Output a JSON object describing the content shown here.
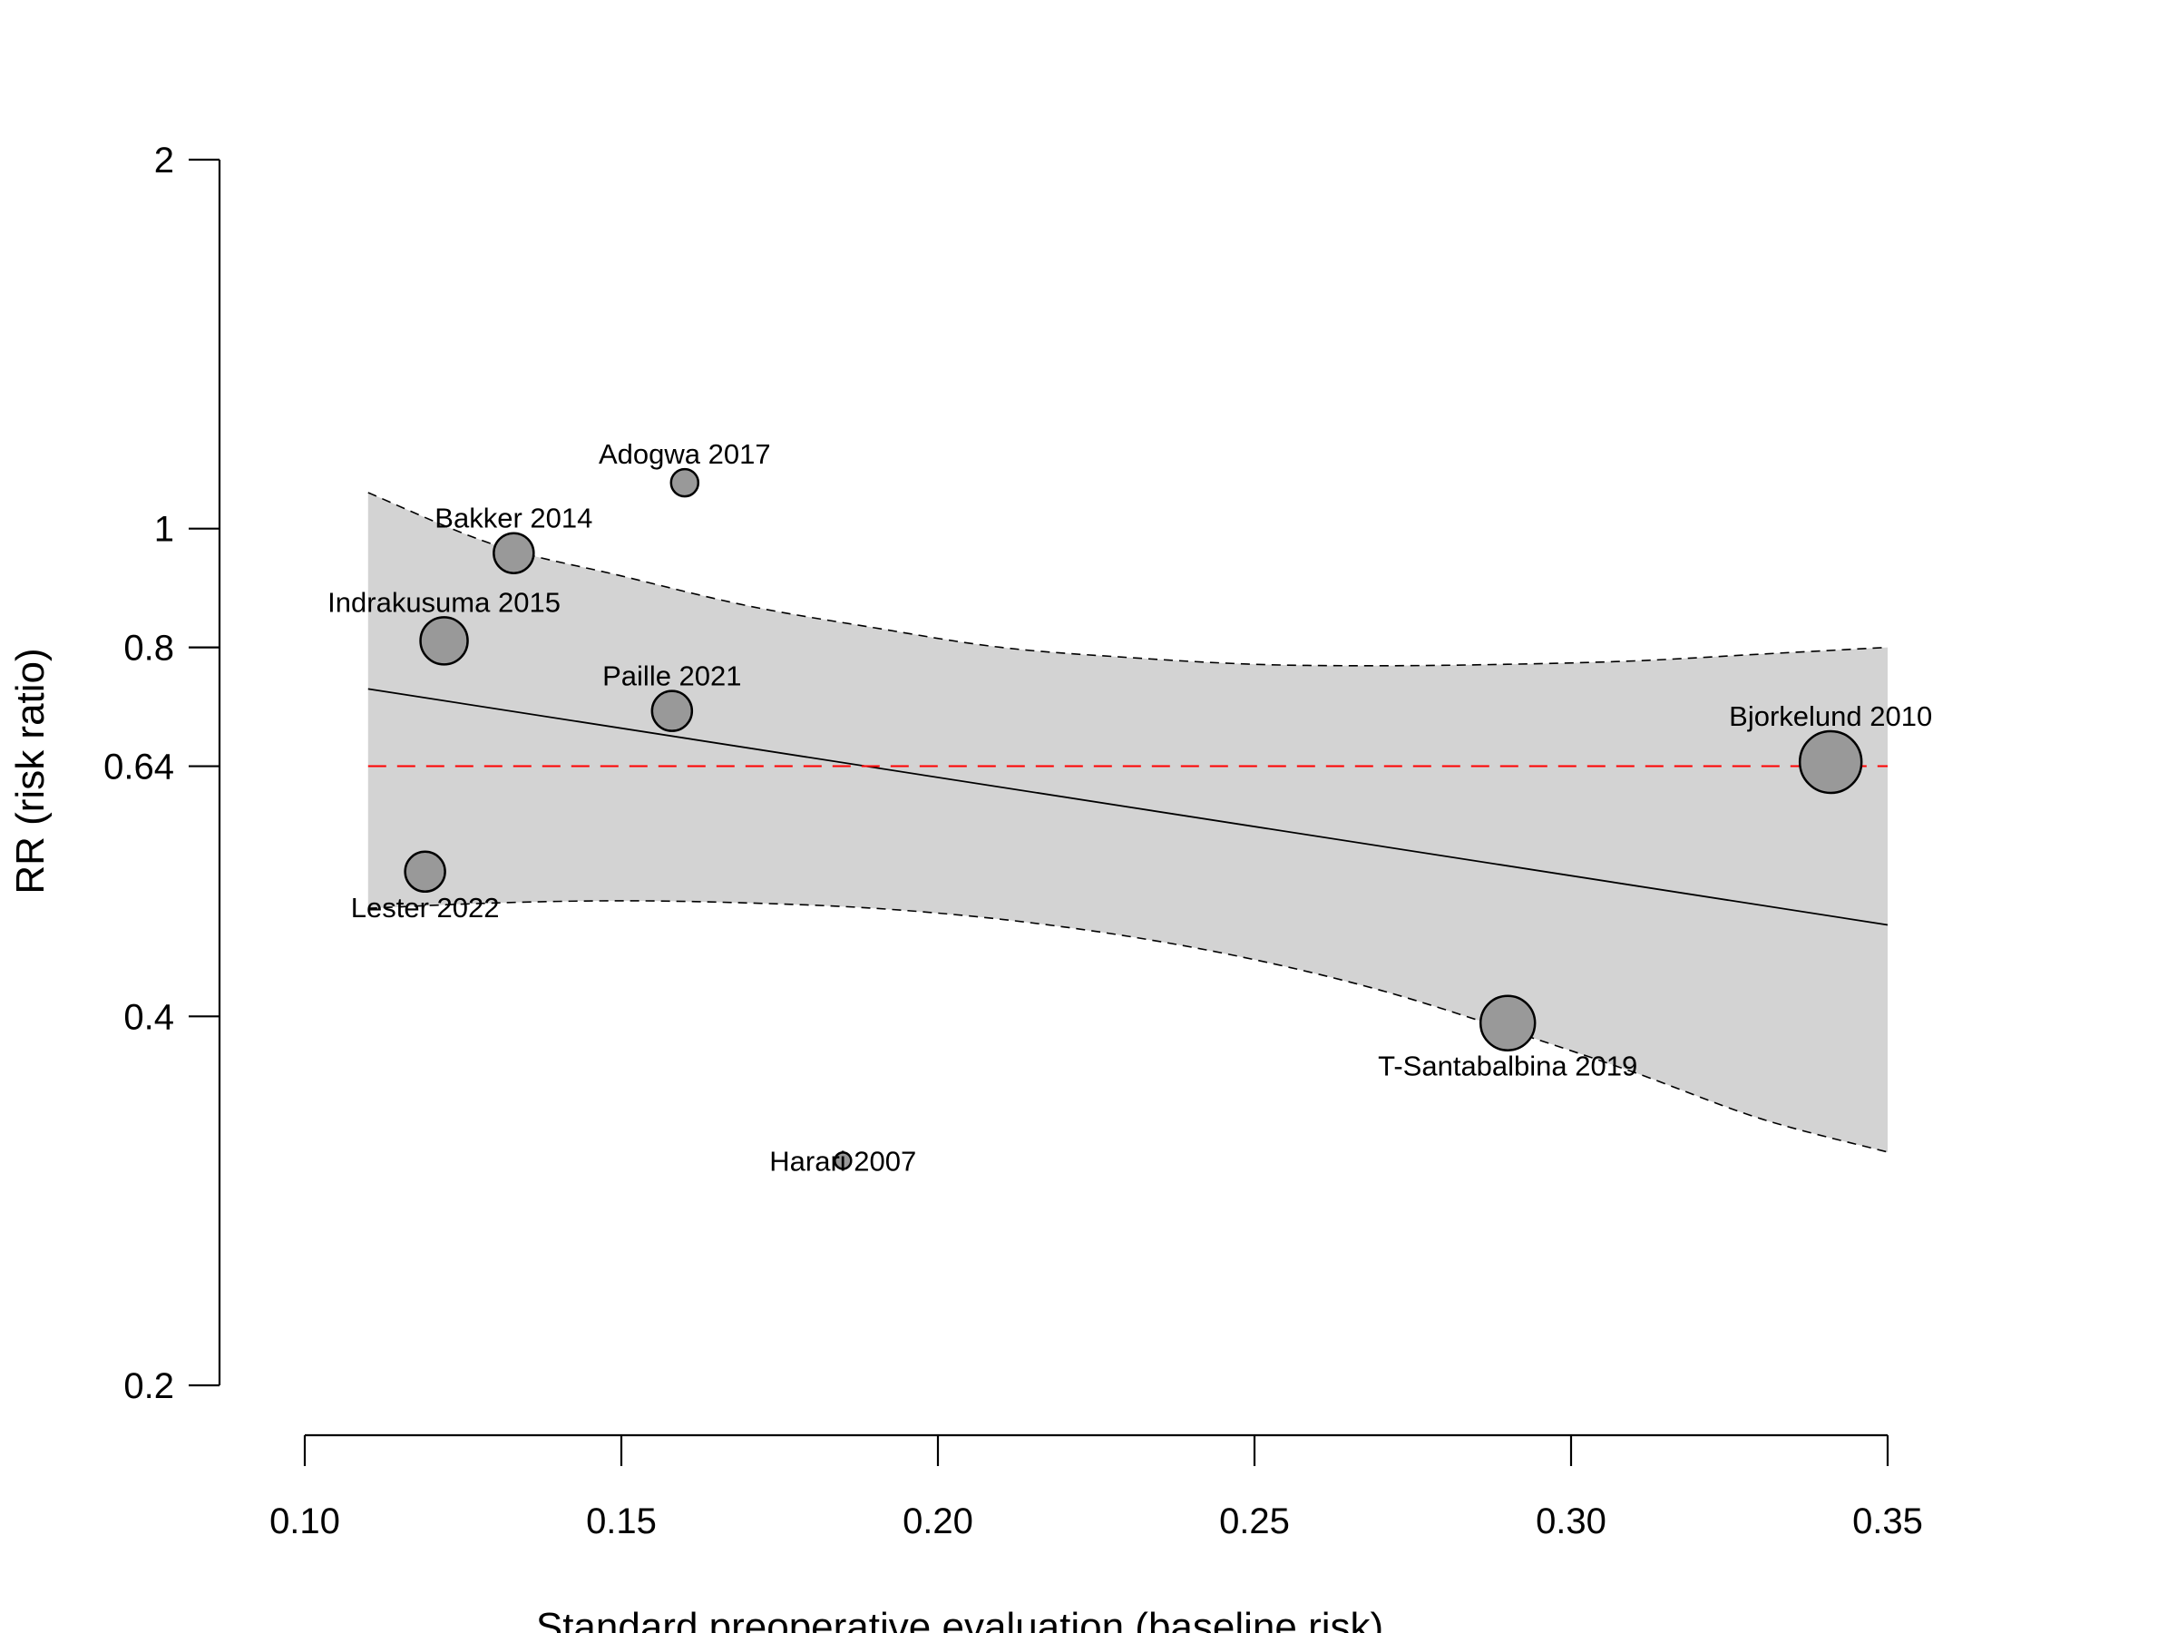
{
  "chart_data": {
    "type": "scatter",
    "subtype": "meta-regression bubble plot",
    "xlabel": "Standard preoperative evaluation (baseline risk)",
    "ylabel": "RR (risk ratio)",
    "x_scale": "linear",
    "y_scale": "log",
    "xlim": [
      0.1,
      0.35
    ],
    "ylim": [
      0.2,
      2
    ],
    "x_ticks": [
      "0.10",
      "0.15",
      "0.20",
      "0.25",
      "0.30",
      "0.35"
    ],
    "y_ticks": [
      "0.2",
      "0.4",
      "0.64",
      "0.8",
      "1",
      "2"
    ],
    "grid": false,
    "reference_line": {
      "y": 0.64,
      "color": "#ff0000",
      "style": "dashed"
    },
    "regression_line": {
      "x": [
        0.11,
        0.35
      ],
      "y": [
        0.74,
        0.475
      ]
    },
    "confidence_band": {
      "x": [
        0.11,
        0.13,
        0.15,
        0.17,
        0.19,
        0.21,
        0.23,
        0.25,
        0.27,
        0.29,
        0.31,
        0.33,
        0.35
      ],
      "upper": [
        1.07,
        0.97,
        0.915,
        0.865,
        0.83,
        0.8,
        0.785,
        0.775,
        0.773,
        0.775,
        0.78,
        0.79,
        0.8
      ],
      "lower": [
        0.49,
        0.495,
        0.497,
        0.495,
        0.49,
        0.48,
        0.465,
        0.445,
        0.42,
        0.39,
        0.36,
        0.33,
        0.31
      ]
    },
    "points": [
      {
        "label": "Adogwa 2017",
        "x": 0.16,
        "y": 1.09,
        "weight": 0.9,
        "label_pos": "above"
      },
      {
        "label": "Bakker 2014",
        "x": 0.133,
        "y": 0.955,
        "weight": 1.6,
        "label_pos": "above"
      },
      {
        "label": "Indrakusuma 2015",
        "x": 0.122,
        "y": 0.81,
        "weight": 2.0,
        "label_pos": "above"
      },
      {
        "label": "Paille 2021",
        "x": 0.158,
        "y": 0.71,
        "weight": 1.6,
        "label_pos": "above"
      },
      {
        "label": "Bjorkelund 2010",
        "x": 0.341,
        "y": 0.645,
        "weight": 2.8,
        "label_pos": "above"
      },
      {
        "label": "Lester 2022",
        "x": 0.119,
        "y": 0.525,
        "weight": 1.6,
        "label_pos": "below"
      },
      {
        "label": "T-Santabalbina 2019",
        "x": 0.29,
        "y": 0.395,
        "weight": 2.4,
        "label_pos": "below"
      },
      {
        "label": "Harari 2007",
        "x": 0.185,
        "y": 0.305,
        "weight": 0.3,
        "label_pos": "center"
      }
    ],
    "colors": {
      "band_fill": "#d3d3d3",
      "point_fill": "#999999",
      "point_stroke": "#000000",
      "reference": "#ff0000",
      "axis": "#000000"
    }
  }
}
